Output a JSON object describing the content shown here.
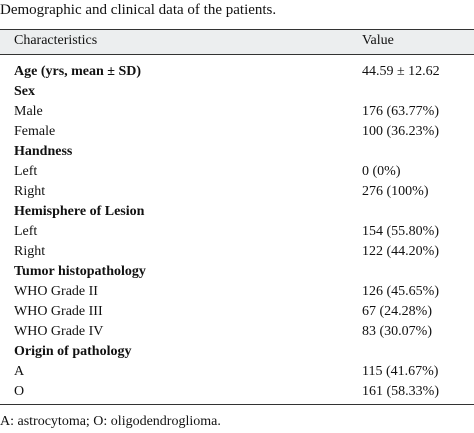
{
  "title": "Demographic and clinical data of the patients.",
  "table": {
    "header": [
      "Characteristics",
      "Value"
    ],
    "rows": [
      {
        "cells": [
          "Age (yrs, mean ± SD)",
          "44.59 ± 12.62"
        ],
        "bold": true
      },
      {
        "cells": [
          "Sex"
        ],
        "bold": true
      },
      {
        "cells": [
          "Male",
          "176 (63.77%)"
        ]
      },
      {
        "cells": [
          "Female",
          "100 (36.23%)"
        ]
      },
      {
        "cells": [
          "Handness"
        ],
        "bold": true
      },
      {
        "cells": [
          "Left",
          "0 (0%)"
        ]
      },
      {
        "cells": [
          "Right",
          "276 (100%)"
        ]
      },
      {
        "cells": [
          "Hemisphere of Lesion"
        ],
        "bold": true
      },
      {
        "cells": [
          "Left",
          "154 (55.80%)"
        ]
      },
      {
        "cells": [
          "Right",
          "122 (44.20%)"
        ]
      },
      {
        "cells": [
          "Tumor histopathology"
        ],
        "bold": true
      },
      {
        "cells": [
          "WHO Grade II",
          "126 (45.65%)"
        ]
      },
      {
        "cells": [
          "WHO Grade III",
          "67 (24.28%)"
        ]
      },
      {
        "cells": [
          "WHO Grade IV",
          "83 (30.07%)"
        ]
      },
      {
        "cells": [
          "Origin of pathology"
        ],
        "bold": true
      },
      {
        "cells": [
          "A",
          "115 (41.67%)"
        ]
      },
      {
        "cells": [
          "O",
          "161 (58.33%)"
        ]
      }
    ]
  },
  "footnote": "A: astrocytoma; O: oligodendroglioma."
}
